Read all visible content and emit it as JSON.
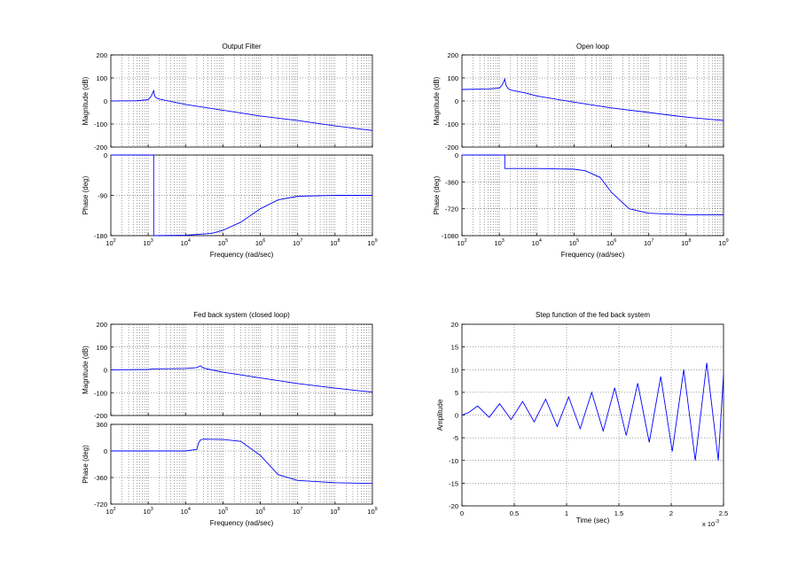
{
  "colors": {
    "trace": "#0000ff",
    "axis": "#000000",
    "grid": "#000000",
    "background": "#ffffff"
  },
  "chart_data": [
    {
      "type": "line",
      "title": "Output Filter",
      "xlabel": "Frequency  (rad/sec)",
      "xscale": "log",
      "xlim": [
        100,
        1000000000
      ],
      "xticks": [
        2,
        3,
        4,
        5,
        6,
        7,
        8,
        9
      ],
      "grid": true,
      "magnitude": {
        "ylabel": "Magnitude (dB)",
        "ylim": [
          -200,
          200
        ],
        "yticks": [
          "200",
          "100",
          "0",
          "-100",
          "-200"
        ],
        "x": [
          100,
          500,
          1000,
          1200,
          1400,
          1500,
          1700,
          2000,
          5000,
          10000,
          100000,
          1000000,
          10000000,
          100000000,
          1000000000
        ],
        "y": [
          0,
          1,
          6,
          20,
          45,
          20,
          12,
          8,
          -5,
          -15,
          -40,
          -65,
          -85,
          -108,
          -128
        ]
      },
      "phase": {
        "ylabel": "Phase (deg)",
        "ylim": [
          -180,
          0
        ],
        "yticks": [
          "0",
          "-90",
          "-180"
        ],
        "x": [
          100,
          1400,
          1401,
          10000,
          50000,
          100000,
          300000,
          1000000,
          3000000,
          10000000,
          100000000,
          1000000000
        ],
        "y": [
          0,
          0,
          -180,
          -179,
          -175,
          -168,
          -150,
          -120,
          -100,
          -92,
          -90,
          -90
        ]
      }
    },
    {
      "type": "line",
      "title": "Open loop",
      "xlabel": "Frequency  (rad/sec)",
      "xscale": "log",
      "xlim": [
        100,
        1000000000
      ],
      "xticks": [
        2,
        3,
        4,
        5,
        6,
        7,
        8,
        9
      ],
      "grid": true,
      "magnitude": {
        "ylabel": "Magnitude (dB)",
        "ylim": [
          -200,
          200
        ],
        "yticks": [
          "200",
          "100",
          "0",
          "-100",
          "-200"
        ],
        "x": [
          100,
          500,
          1000,
          1200,
          1400,
          1500,
          1700,
          2000,
          5000,
          10000,
          100000,
          1000000,
          10000000,
          100000000,
          1000000000
        ],
        "y": [
          50,
          52,
          56,
          70,
          95,
          70,
          55,
          48,
          35,
          22,
          -5,
          -30,
          -50,
          -70,
          -85
        ]
      },
      "phase": {
        "ylabel": "Phase (deg)",
        "ylim": [
          -1080,
          0
        ],
        "yticks": [
          "0",
          "-360",
          "-720",
          "-1080"
        ],
        "x": [
          100,
          1400,
          1401,
          10000,
          100000,
          200000,
          500000,
          1000000,
          3000000,
          10000000,
          100000000,
          1000000000
        ],
        "y": [
          0,
          0,
          -180,
          -180,
          -190,
          -210,
          -300,
          -500,
          -720,
          -780,
          -800,
          -800
        ]
      }
    },
    {
      "type": "line",
      "title": "Fed back system (closed loop)",
      "xlabel": "Frequency  (rad/sec)",
      "xscale": "log",
      "xlim": [
        100,
        1000000000
      ],
      "xticks": [
        2,
        3,
        4,
        5,
        6,
        7,
        8,
        9
      ],
      "grid": true,
      "magnitude": {
        "ylabel": "Magnitude (dB)",
        "ylim": [
          -200,
          200
        ],
        "yticks": [
          "200",
          "100",
          "0",
          "-100",
          "-200"
        ],
        "x": [
          100,
          1000,
          1400,
          10000,
          20000,
          25000,
          30000,
          50000,
          100000,
          1000000,
          10000000,
          100000000,
          1000000000
        ],
        "y": [
          0,
          2,
          4,
          6,
          10,
          18,
          8,
          0,
          -10,
          -35,
          -60,
          -80,
          -98
        ]
      },
      "phase": {
        "ylabel": "Phase (deg)",
        "ylim": [
          -720,
          360
        ],
        "yticks": [
          "360",
          "0",
          "-360",
          "-720"
        ],
        "x": [
          100,
          10000,
          20000,
          22000,
          25000,
          30000,
          100000,
          300000,
          1000000,
          3000000,
          10000000,
          100000000,
          1000000000
        ],
        "y": [
          0,
          0,
          20,
          100,
          150,
          160,
          155,
          130,
          -60,
          -320,
          -400,
          -430,
          -440
        ]
      }
    },
    {
      "type": "line",
      "title": "Step function of the fed back system",
      "xlabel": "Time (sec)",
      "ylabel": "Amplitude",
      "xlim": [
        0,
        2.5
      ],
      "ylim": [
        -20,
        20
      ],
      "xticks": [
        "0",
        "0.5",
        "1",
        "1.5",
        "2",
        "2.5"
      ],
      "yticks": [
        "20",
        "15",
        "10",
        "5",
        "0",
        "-5",
        "-10",
        "-15",
        "-20"
      ],
      "x_exponent": "x 10",
      "x_exponent_power": "-3",
      "grid": true,
      "x": [
        0,
        0.06,
        0.15,
        0.26,
        0.36,
        0.47,
        0.58,
        0.69,
        0.8,
        0.91,
        1.02,
        1.13,
        1.24,
        1.35,
        1.46,
        1.57,
        1.68,
        1.79,
        1.9,
        2.01,
        2.12,
        2.23,
        2.34,
        2.45,
        2.5
      ],
      "y": [
        0,
        0.5,
        2,
        -0.5,
        2.5,
        -1,
        3,
        -1.5,
        3.5,
        -2.5,
        4,
        -3,
        5,
        -3.5,
        6,
        -4.5,
        7,
        -6,
        8.5,
        -8,
        10,
        -10,
        11.5,
        -10,
        9
      ]
    }
  ]
}
